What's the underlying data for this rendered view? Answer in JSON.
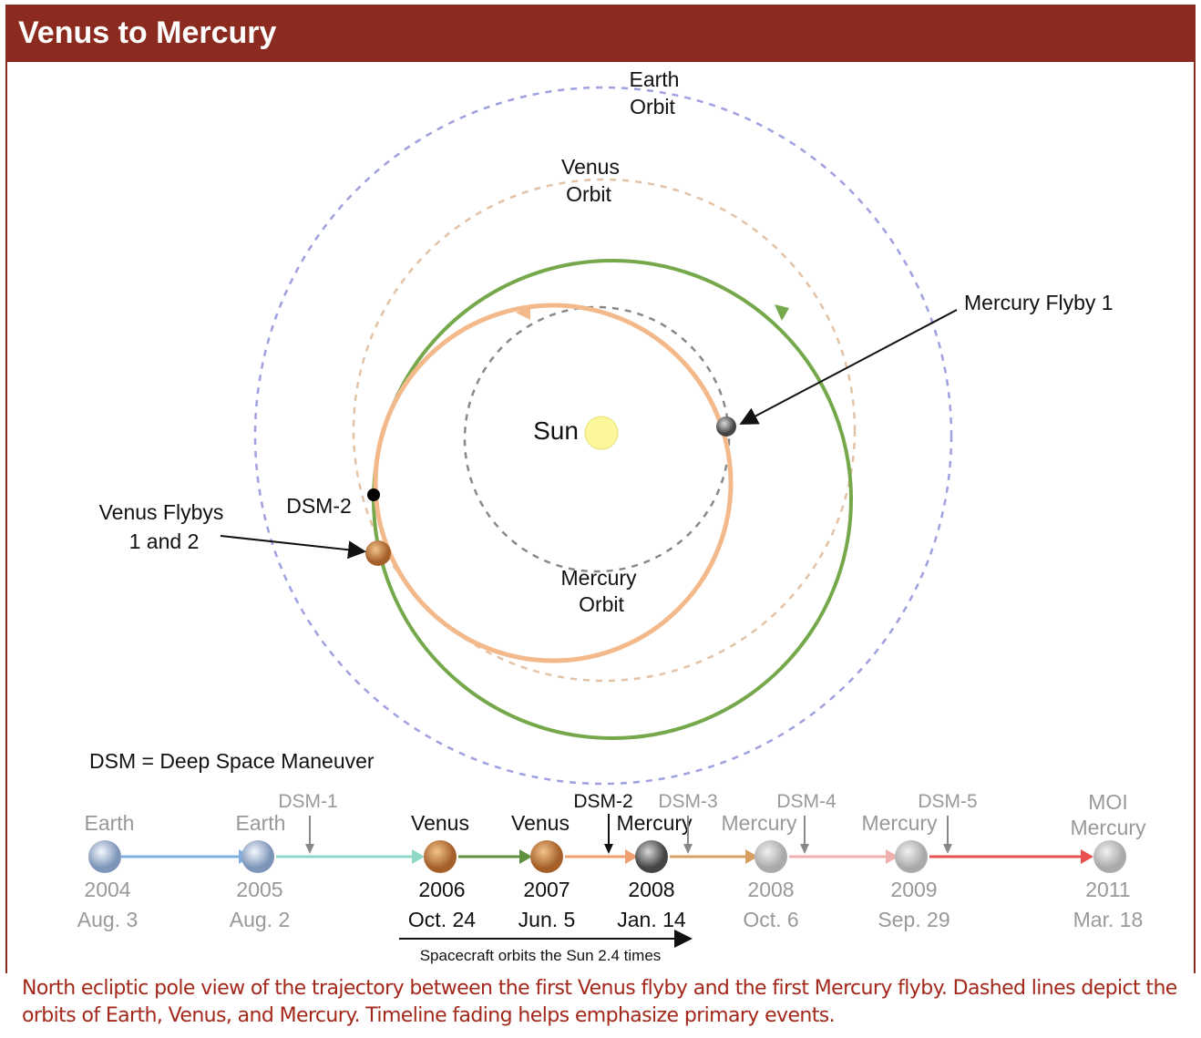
{
  "header": {
    "title": "Venus to Mercury"
  },
  "orbit_labels": {
    "earth": [
      "Earth",
      "Orbit"
    ],
    "venus": [
      "Venus",
      "Orbit"
    ],
    "mercury": [
      "Mercury",
      "Orbit"
    ],
    "sun": "Sun"
  },
  "callouts": {
    "mercury_flyby": "Mercury Flyby 1",
    "venus_flybys": [
      "Venus Flybys",
      "1 and 2"
    ],
    "dsm2": "DSM-2"
  },
  "legend": "DSM = Deep Space Maneuver",
  "timeline": {
    "events": [
      {
        "name": [
          "Earth"
        ],
        "year": "2004",
        "date": "Aug. 3"
      },
      {
        "name": [
          "Earth"
        ],
        "year": "2005",
        "date": "Aug. 2"
      },
      {
        "name": [
          "Venus"
        ],
        "year": "2006",
        "date": "Oct. 24"
      },
      {
        "name": [
          "Venus"
        ],
        "year": "2007",
        "date": "Jun. 5"
      },
      {
        "name": [
          "Mercury"
        ],
        "year": "2008",
        "date": "Jan. 14"
      },
      {
        "name": [
          "Mercury"
        ],
        "year": "2008",
        "date": "Oct. 6"
      },
      {
        "name": [
          "Mercury"
        ],
        "year": "2009",
        "date": "Sep. 29"
      },
      {
        "name": [
          "MOI",
          "Mercury"
        ],
        "year": "2011",
        "date": "Mar. 18"
      }
    ],
    "maneuvers": [
      "DSM-1",
      "DSM-2",
      "DSM-3",
      "DSM-4",
      "DSM-5"
    ],
    "note": "Spacecraft orbits the Sun 2.4 times"
  },
  "caption": "North ecliptic pole view of the trajectory between the first Venus flyby and the first Mercury flyby. Dashed lines depict the orbits of Earth, Venus, and Mercury. Timeline fading helps emphasize primary events."
}
